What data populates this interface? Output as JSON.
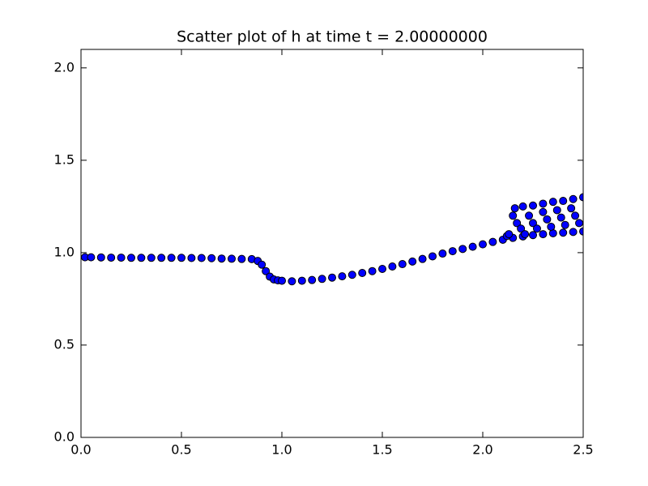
{
  "chart_data": {
    "type": "scatter",
    "title": "Scatter plot of h at time t =     2.00000000",
    "x": [
      0.02,
      0.05,
      0.1,
      0.15,
      0.2,
      0.25,
      0.3,
      0.35,
      0.4,
      0.45,
      0.5,
      0.55,
      0.6,
      0.65,
      0.7,
      0.75,
      0.8,
      0.85,
      0.88,
      0.9,
      0.92,
      0.94,
      0.96,
      0.98,
      1.0,
      1.05,
      1.1,
      1.15,
      1.2,
      1.25,
      1.3,
      1.35,
      1.4,
      1.45,
      1.5,
      1.55,
      1.6,
      1.65,
      1.7,
      1.75,
      1.8,
      1.85,
      1.9,
      1.95,
      2.0,
      2.05,
      2.1,
      2.15,
      2.2,
      2.25,
      2.3,
      2.35,
      2.4,
      2.45,
      2.5,
      2.16,
      2.2,
      2.25,
      2.3,
      2.35,
      2.4,
      2.45,
      2.5,
      2.15,
      2.17,
      2.19,
      2.21,
      2.23,
      2.25,
      2.27,
      2.3,
      2.32,
      2.34,
      2.37,
      2.39,
      2.41,
      2.44,
      2.46,
      2.48,
      2.12,
      2.13
    ],
    "values": [
      0.975,
      0.975,
      0.974,
      0.973,
      0.973,
      0.972,
      0.972,
      0.972,
      0.972,
      0.972,
      0.972,
      0.971,
      0.971,
      0.97,
      0.968,
      0.967,
      0.966,
      0.965,
      0.955,
      0.935,
      0.9,
      0.87,
      0.855,
      0.85,
      0.848,
      0.845,
      0.848,
      0.852,
      0.858,
      0.865,
      0.872,
      0.88,
      0.89,
      0.9,
      0.912,
      0.925,
      0.938,
      0.952,
      0.966,
      0.98,
      0.995,
      1.008,
      1.02,
      1.032,
      1.045,
      1.058,
      1.07,
      1.08,
      1.088,
      1.095,
      1.1,
      1.105,
      1.108,
      1.112,
      1.115,
      1.24,
      1.25,
      1.255,
      1.265,
      1.275,
      1.28,
      1.29,
      1.3,
      1.2,
      1.16,
      1.13,
      1.1,
      1.2,
      1.16,
      1.13,
      1.22,
      1.18,
      1.14,
      1.23,
      1.19,
      1.15,
      1.24,
      1.2,
      1.16,
      1.09,
      1.1
    ],
    "color": "#0000ff",
    "edgecolor": "#000000",
    "xlim": [
      0,
      2.5
    ],
    "xticks": [
      {
        "value": 0,
        "label": "0.0"
      },
      0.5,
      {
        "value": 1,
        "label": "1.0"
      },
      1.5,
      {
        "value": 2,
        "label": "2.0"
      },
      2.5
    ],
    "ylim": [
      0,
      2.1
    ],
    "yticks": [
      {
        "value": 0,
        "label": "0.0"
      },
      0.5,
      {
        "value": 1,
        "label": "1.0"
      },
      1.5,
      {
        "value": 2,
        "label": "2.0"
      }
    ],
    "grid": false
  }
}
